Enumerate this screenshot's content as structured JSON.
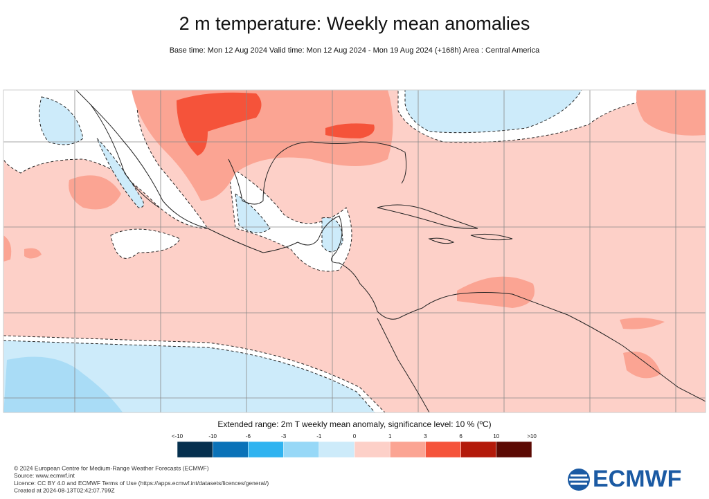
{
  "header": {
    "title": "2 m temperature: Weekly mean anomalies",
    "subtitle": "Base time: Mon 12 Aug 2024 Valid time: Mon 12 Aug 2024 - Mon 19 Aug 2024 (+168h) Area : Central America"
  },
  "legend": {
    "title": "Extended range: 2m T weekly mean anomaly, significance level: 10 % (ºC)",
    "labels": [
      "<-10",
      "-10",
      "-6",
      "-3",
      "-1",
      "0",
      "1",
      "3",
      "6",
      "10",
      ">10"
    ],
    "colors": [
      "#06304f",
      "#0a72b8",
      "#2fb3f0",
      "#97d8f7",
      "#cdebfa",
      "#fdd0c8",
      "#fba493",
      "#f5533a",
      "#b31a0a",
      "#5c0a04"
    ]
  },
  "footer": {
    "lines": [
      "© 2024 European Centre for Medium-Range Weather Forecasts (ECMWF)",
      "Source: www.ecmwf.int",
      "Licence: CC BY 4.0 and ECMWF Terms of Use (https://apps.ecmwf.int/datasets/licences/general/)",
      "Created at 2024-08-13T02:42:07.799Z"
    ]
  },
  "logo": {
    "text": "ECMWF"
  }
}
